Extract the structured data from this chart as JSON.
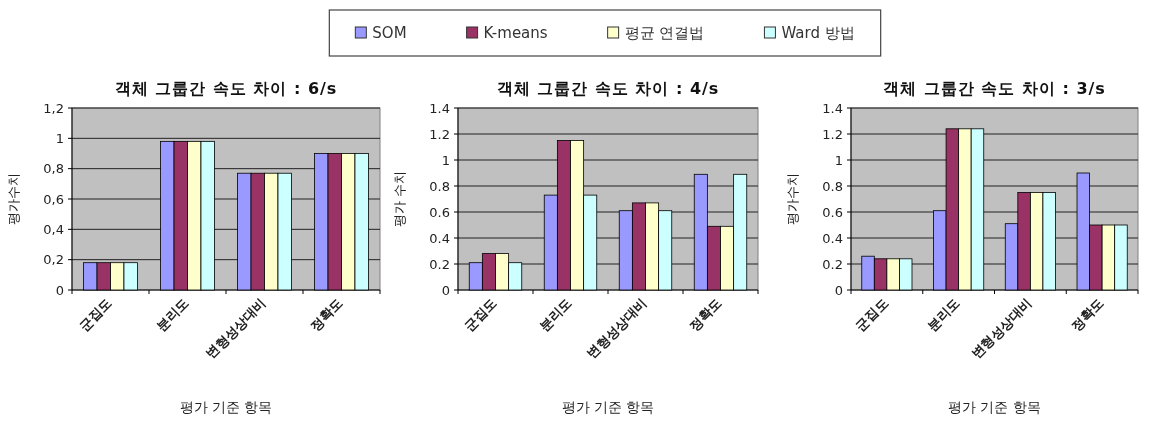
{
  "chart_data": [
    {
      "type": "bar",
      "title": "객체 그룹간 속도 차이 : 6/s",
      "xlabel": "평가 기준 항목",
      "ylabel": "평가수치",
      "categories": [
        "군집도",
        "분리도",
        "변형성상대비",
        "정확도"
      ],
      "series": [
        {
          "name": "SOM",
          "color": "#9999ff",
          "values": [
            0.18,
            0.98,
            0.77,
            0.9
          ]
        },
        {
          "name": "K-means",
          "color": "#993366",
          "values": [
            0.18,
            0.98,
            0.77,
            0.9
          ]
        },
        {
          "name": "평균 연결법",
          "color": "#ffffcc",
          "values": [
            0.18,
            0.98,
            0.77,
            0.9
          ]
        },
        {
          "name": "Ward 방법",
          "color": "#ccffff",
          "values": [
            0.18,
            0.98,
            0.77,
            0.9
          ]
        }
      ],
      "ylim": [
        0,
        1.2
      ],
      "yticks": [
        0,
        {
          "value": 0.2,
          "label": "0,2"
        },
        {
          "value": 0.4,
          "label": "0,4"
        },
        {
          "value": 0.6,
          "label": "0,6"
        },
        {
          "value": 0.8,
          "label": "0,8"
        },
        1,
        {
          "value": 1.2,
          "label": "1,2"
        }
      ],
      "grid": "y",
      "legend": "top"
    },
    {
      "type": "bar",
      "title": "객체 그룹간 속도 차이 : 4/s",
      "xlabel": "평가 기준 항목",
      "ylabel": "평가 수치",
      "categories": [
        "군집도",
        "분리도",
        "변형성상대비",
        "정확도"
      ],
      "series": [
        {
          "color": "#9999ff",
          "values": [
            0.21,
            0.73,
            0.61,
            0.89
          ]
        },
        {
          "color": "#993366",
          "values": [
            0.28,
            1.15,
            0.67,
            0.49
          ]
        },
        {
          "color": "#ffffcc",
          "values": [
            0.28,
            1.15,
            0.67,
            0.49
          ]
        },
        {
          "color": "#ccffff",
          "values": [
            0.21,
            0.73,
            0.61,
            0.89
          ]
        }
      ],
      "ylim": [
        0,
        1.4
      ],
      "yticks": [
        0,
        0.2,
        0.4,
        0.6,
        0.8,
        1,
        1.2,
        1.4
      ],
      "grid": "y"
    },
    {
      "type": "bar",
      "title": "객체 그룹간 속도 차이 : 3/s",
      "xlabel": "평가 기준 항목",
      "ylabel": "평가수치",
      "categories": [
        "군집도",
        "분리도",
        "변형성상대비",
        "정확도"
      ],
      "series": [
        {
          "color": "#9999ff",
          "values": [
            0.26,
            0.61,
            0.51,
            0.9
          ]
        },
        {
          "color": "#993366",
          "values": [
            0.24,
            1.24,
            0.75,
            0.5
          ]
        },
        {
          "color": "#ffffcc",
          "values": [
            0.24,
            1.24,
            0.75,
            0.5
          ]
        },
        {
          "color": "#ccffff",
          "values": [
            0.24,
            1.24,
            0.75,
            0.5
          ]
        }
      ],
      "ylim": [
        0,
        1.4
      ],
      "yticks": [
        0,
        0.2,
        0.4,
        0.6,
        0.8,
        1,
        1.2,
        1.4
      ],
      "grid": "y"
    }
  ]
}
